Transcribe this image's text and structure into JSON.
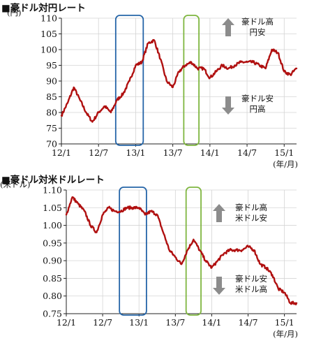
{
  "chart_data": [
    {
      "type": "line",
      "title": "■豪ドル対円レート",
      "y_unit": "(円)",
      "x_unit": "(年/月)",
      "ylim": [
        70,
        110
      ],
      "y_ticks": [
        "70",
        "75",
        "80",
        "85",
        "90",
        "95",
        "100",
        "105",
        "110"
      ],
      "x_ticks": [
        "12/1",
        "12/7",
        "13/1",
        "13/7",
        "14/1",
        "14/7",
        "15/1"
      ],
      "x_range": [
        "2012-01",
        "2015-03"
      ],
      "grid": true,
      "series": [
        {
          "color": "#b01010",
          "x": [
            "2012-01",
            "2012-02",
            "2012-03",
            "2012-04",
            "2012-05",
            "2012-06",
            "2012-07",
            "2012-08",
            "2012-09",
            "2012-10",
            "2012-11",
            "2012-12",
            "2013-01",
            "2013-02",
            "2013-03",
            "2013-04",
            "2013-05",
            "2013-06",
            "2013-07",
            "2013-08",
            "2013-09",
            "2013-10",
            "2013-11",
            "2013-12",
            "2014-01",
            "2014-02",
            "2014-03",
            "2014-04",
            "2014-05",
            "2014-06",
            "2014-07",
            "2014-08",
            "2014-09",
            "2014-10",
            "2014-11",
            "2014-12",
            "2015-01",
            "2015-02",
            "2015-03"
          ],
          "values": [
            79,
            83,
            88,
            84,
            80,
            77,
            80,
            82,
            80,
            84,
            86,
            90,
            95,
            96,
            102,
            103,
            97,
            90,
            88,
            93,
            95,
            96,
            94,
            94,
            91,
            93,
            95,
            94,
            95,
            96,
            96,
            96,
            95,
            94,
            100,
            99,
            93,
            92,
            94
          ]
        }
      ],
      "annotations": [
        {
          "text": [
            "豪ドル高",
            "円安"
          ],
          "arrow": "up"
        },
        {
          "text": [
            "豪ドル安",
            "円高"
          ],
          "arrow": "down"
        }
      ],
      "highlight_boxes": [
        {
          "x_start": "2012-10",
          "x_end": "2013-02",
          "color": "#2565a8"
        },
        {
          "x_start": "2013-09",
          "x_end": "2013-11",
          "color": "#7fb640"
        }
      ]
    },
    {
      "type": "line",
      "title": "■豪ドル対米ドルレート",
      "y_unit": "(米ドル)",
      "x_unit": "(年/月)",
      "ylim": [
        0.75,
        1.1
      ],
      "y_ticks": [
        "0.75",
        "0.80",
        "0.85",
        "0.90",
        "0.95",
        "1.00",
        "1.05",
        "1.10"
      ],
      "x_ticks": [
        "12/1",
        "12/7",
        "13/1",
        "13/7",
        "14/1",
        "14/7",
        "15/1"
      ],
      "x_range": [
        "2012-01",
        "2015-03"
      ],
      "grid": true,
      "series": [
        {
          "color": "#b01010",
          "x": [
            "2012-01",
            "2012-02",
            "2012-03",
            "2012-04",
            "2012-05",
            "2012-06",
            "2012-07",
            "2012-08",
            "2012-09",
            "2012-10",
            "2012-11",
            "2012-12",
            "2013-01",
            "2013-02",
            "2013-03",
            "2013-04",
            "2013-05",
            "2013-06",
            "2013-07",
            "2013-08",
            "2013-09",
            "2013-10",
            "2013-11",
            "2013-12",
            "2014-01",
            "2014-02",
            "2014-03",
            "2014-04",
            "2014-05",
            "2014-06",
            "2014-07",
            "2014-08",
            "2014-09",
            "2014-10",
            "2014-11",
            "2014-12",
            "2015-01",
            "2015-02",
            "2015-03"
          ],
          "values": [
            1.03,
            1.08,
            1.06,
            1.04,
            1.0,
            0.98,
            1.03,
            1.05,
            1.04,
            1.04,
            1.05,
            1.05,
            1.05,
            1.03,
            1.04,
            1.03,
            0.98,
            0.93,
            0.91,
            0.89,
            0.93,
            0.96,
            0.93,
            0.9,
            0.88,
            0.9,
            0.92,
            0.93,
            0.93,
            0.93,
            0.94,
            0.93,
            0.89,
            0.88,
            0.86,
            0.82,
            0.81,
            0.78,
            0.78
          ]
        }
      ],
      "annotations": [
        {
          "text": [
            "豪ドル高",
            "米ドル安"
          ],
          "arrow": "up"
        },
        {
          "text": [
            "豪ドル安",
            "米ドル高"
          ],
          "arrow": "down"
        }
      ],
      "highlight_boxes": [
        {
          "x_start": "2012-10",
          "x_end": "2013-02",
          "color": "#2565a8"
        },
        {
          "x_start": "2013-09",
          "x_end": "2013-11",
          "color": "#7fb640"
        }
      ]
    }
  ]
}
